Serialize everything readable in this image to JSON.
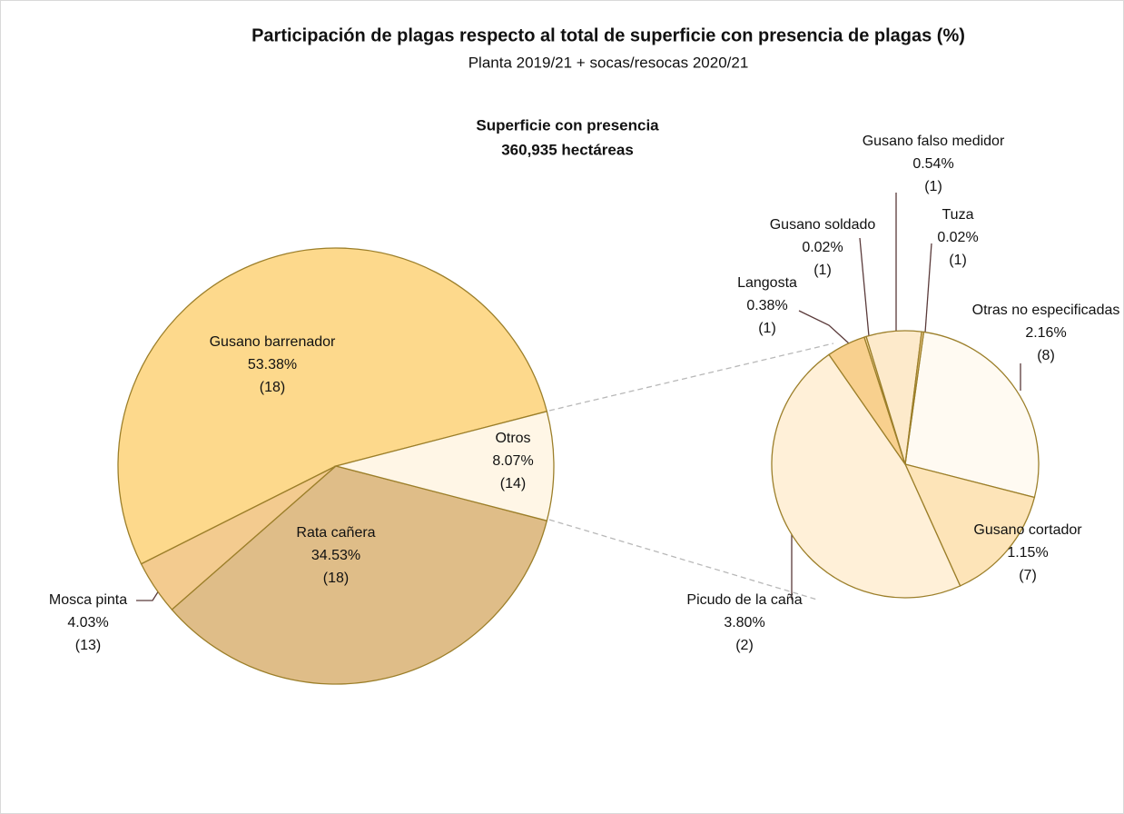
{
  "chart_data": [
    {
      "type": "pie",
      "title": "Participación de plagas respecto al total de superficie con presencia de plagas (%)",
      "subtitle": "Planta 2019/21 + socas/resocas 2020/21",
      "annotation": [
        "Superficie con presencia",
        "360,935 hectáreas"
      ],
      "categories": [
        "Gusano barrenador",
        "Mosca pinta",
        "Rata cañera",
        "Otros"
      ],
      "values": [
        53.38,
        4.03,
        34.53,
        8.07
      ],
      "value_labels": [
        "53.38%",
        "4.03%",
        "34.53%",
        "8.07%"
      ],
      "count_labels": [
        "(18)",
        "(13)",
        "(18)",
        "(14)"
      ],
      "colors": [
        "#fdd98c",
        "#f3cb8f",
        "#dfbd88",
        "#fff6e6"
      ]
    },
    {
      "type": "pie",
      "categories": [
        "Otras no especificadas",
        "Gusano cortador",
        "Picudo de la caña",
        "Langosta",
        "Gusano soldado",
        "Gusano falso medidor",
        "Tuza"
      ],
      "values": [
        2.16,
        1.15,
        3.8,
        0.38,
        0.02,
        0.54,
        0.02
      ],
      "value_labels": [
        "2.16%",
        "1.15%",
        "3.80%",
        "0.38%",
        "0.02%",
        "0.54%",
        "0.02%"
      ],
      "count_labels": [
        "(8)",
        "(7)",
        "(2)",
        "(1)",
        "(1)",
        "(1)",
        "(1)"
      ],
      "colors": [
        "#fffaf2",
        "#fde4b8",
        "#fff0d8",
        "#f8d08e",
        "#fbe0ad",
        "#fdeacb",
        "#f7d59a"
      ]
    }
  ]
}
